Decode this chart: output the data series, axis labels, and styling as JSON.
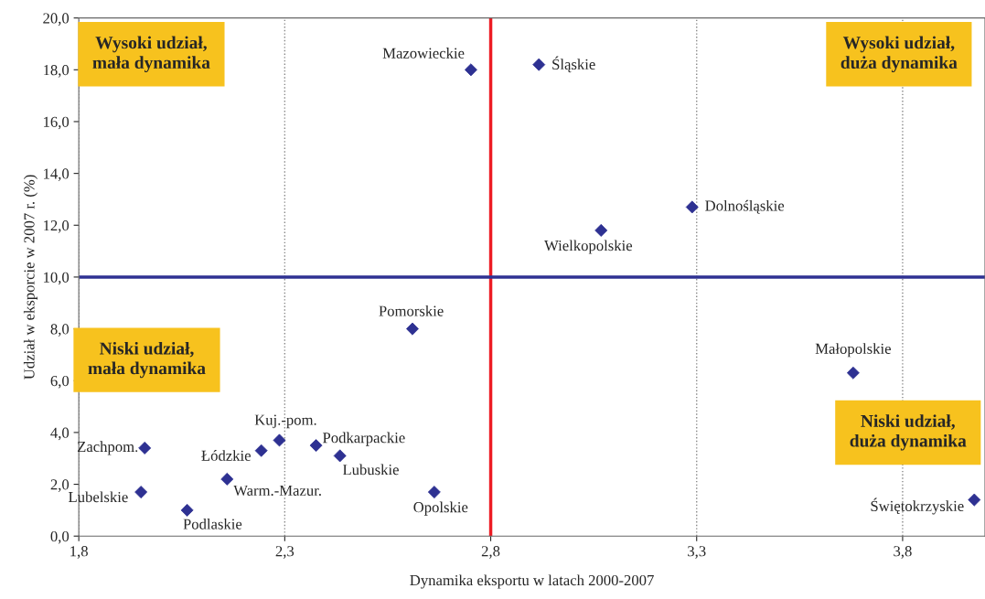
{
  "chart_data": {
    "type": "scatter",
    "xlabel": "Dynamika eksportu w latach 2000-2007",
    "ylabel": "Udział w eksporcie w 2007 r. (%)",
    "series": [
      {
        "color": "#2e3192",
        "x": [
          2.752,
          2.917,
          3.289,
          3.068,
          2.61,
          3.68,
          3.974,
          1.96,
          2.243,
          2.287,
          2.376,
          2.434,
          2.16,
          1.951,
          2.063,
          2.663
        ],
        "values": [
          18.0,
          18.2,
          12.7,
          11.8,
          8.0,
          6.3,
          1.4,
          3.4,
          3.3,
          3.7,
          3.5,
          3.1,
          2.2,
          1.7,
          1.0,
          1.7
        ]
      }
    ],
    "marker": "diamond",
    "xlim": [
      1.8,
      4.0
    ],
    "xticks": [
      {
        "value": 1.8,
        "label": "1,8"
      },
      {
        "value": 2.3,
        "label": "2,3"
      },
      {
        "value": 2.8,
        "label": "2,8"
      },
      {
        "value": 3.3,
        "label": "3,3"
      },
      {
        "value": 3.8,
        "label": "3,8"
      }
    ],
    "ylim": [
      0,
      20
    ],
    "yticks": [
      {
        "value": 0,
        "label": "0,0"
      },
      {
        "value": 2,
        "label": "2,0"
      },
      {
        "value": 4,
        "label": "4,0"
      },
      {
        "value": 6,
        "label": "6,0"
      },
      {
        "value": 8,
        "label": "8,0"
      },
      {
        "value": 10,
        "label": "10,0"
      },
      {
        "value": 12,
        "label": "12,0"
      },
      {
        "value": 14,
        "label": "14,0"
      },
      {
        "value": 16,
        "label": "16,0"
      },
      {
        "value": 18,
        "label": "18,0"
      },
      {
        "value": 20,
        "label": "20,0"
      }
    ],
    "grid": "x",
    "ref_lines": [
      {
        "axis": "x",
        "value": 2.8,
        "color": "#ed1c24"
      },
      {
        "axis": "y",
        "value": 10,
        "color": "#2e3192"
      }
    ],
    "annotations": [
      {
        "text": "Mazowieckie",
        "x": 2.752,
        "y": 18.0
      },
      {
        "text": "Śląskie",
        "x": 2.917,
        "y": 18.2
      },
      {
        "text": "Dolnośląskie",
        "x": 3.289,
        "y": 12.7
      },
      {
        "text": "Wielkopolskie",
        "x": 3.068,
        "y": 11.8
      },
      {
        "text": "Pomorskie",
        "x": 2.61,
        "y": 8.0
      },
      {
        "text": "Małopolskie",
        "x": 3.68,
        "y": 6.3
      },
      {
        "text": "Świętokrzyskie",
        "x": 3.974,
        "y": 1.4
      },
      {
        "text": "Zachpom.",
        "x": 1.96,
        "y": 3.4
      },
      {
        "text": "Łódzkie",
        "x": 2.243,
        "y": 3.3
      },
      {
        "text": "Kuj.-pom.",
        "x": 2.287,
        "y": 3.7
      },
      {
        "text": "Podkarpackie",
        "x": 2.376,
        "y": 3.5
      },
      {
        "text": "Lubuskie",
        "x": 2.434,
        "y": 3.1
      },
      {
        "text": "Warm.-Mazur.",
        "x": 2.16,
        "y": 2.2
      },
      {
        "text": "Lubelskie",
        "x": 1.951,
        "y": 1.7
      },
      {
        "text": "Podlaskie",
        "x": 2.063,
        "y": 1.0
      },
      {
        "text": "Opolskie",
        "x": 2.663,
        "y": 1.7
      },
      "Wysoki udział,\nmała dynamika",
      "Wysoki udział,\nduża dynamika",
      "Niski udział,\nmała dynamika",
      "Niski udział,\nduża dynamika"
    ]
  }
}
